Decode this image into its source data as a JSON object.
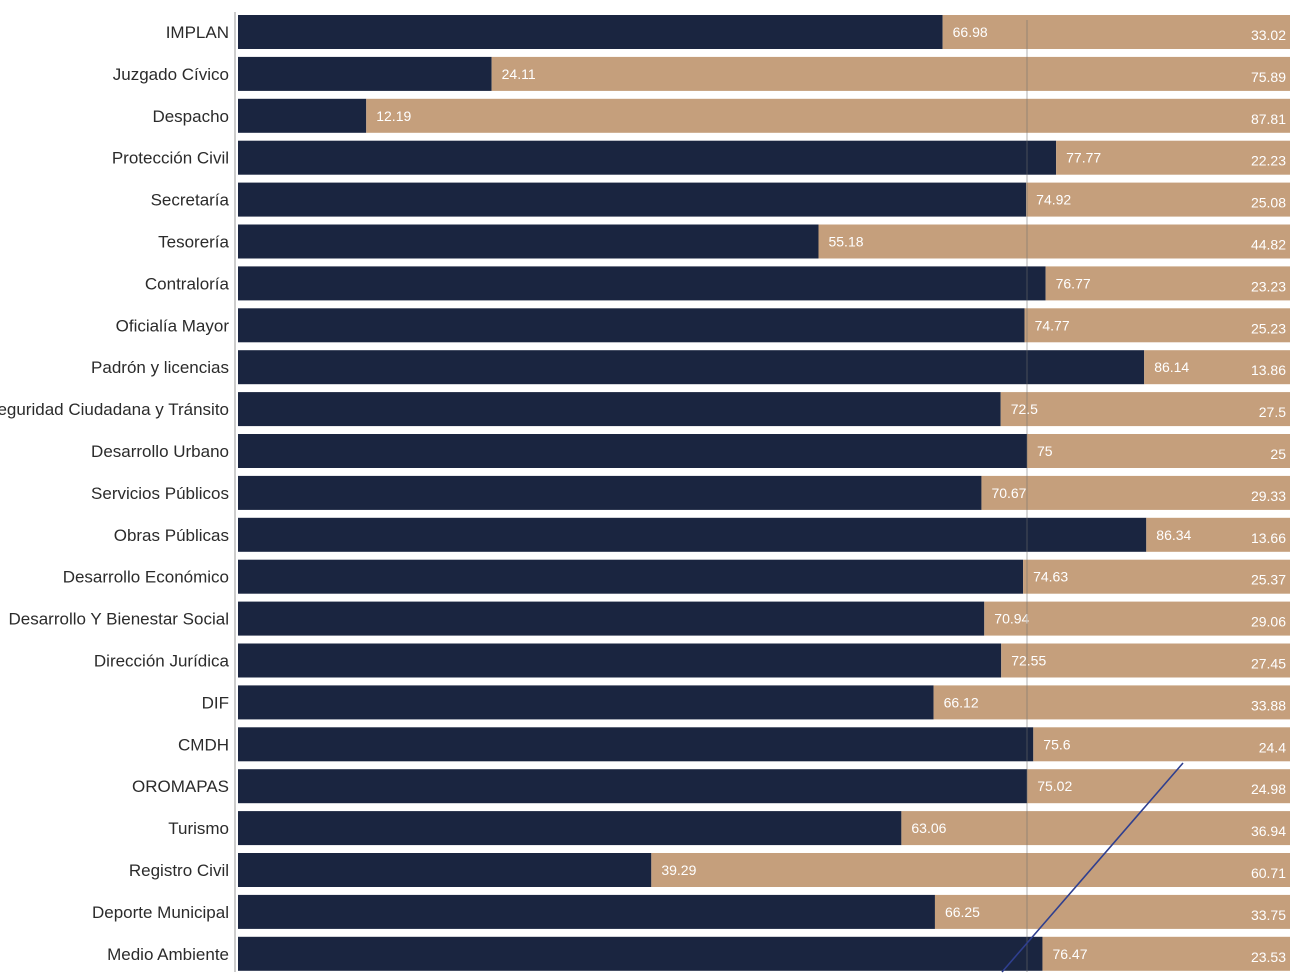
{
  "chart_data": {
    "type": "bar",
    "orientation": "horizontal",
    "stacked": true,
    "percent_stacked": true,
    "xlim": [
      0,
      100
    ],
    "grid": false,
    "legend": "none",
    "title": "",
    "xlabel": "",
    "ylabel": "",
    "categories": [
      "IMPLAN",
      "Juzgado Cívico",
      "Despacho",
      "Protección Civil",
      "Secretaría",
      "Tesorería",
      "Contraloría",
      "Oficialía Mayor",
      "Padrón y licencias",
      "Seguridad Ciudadana y Tránsito",
      "Desarrollo Urbano",
      "Servicios Públicos",
      "Obras Públicas",
      "Desarrollo Económico",
      "Desarrollo Y Bienestar Social",
      "Dirección Jurídica",
      "DIF",
      "CMDH",
      "OROMAPAS",
      "Turismo",
      "Registro Civil",
      "Deporte Municipal",
      "Medio Ambiente"
    ],
    "series": [
      {
        "color": "#1a2540",
        "values": [
          66.98,
          24.11,
          12.19,
          77.77,
          74.92,
          55.18,
          76.77,
          74.77,
          86.14,
          72.5,
          75,
          70.67,
          86.34,
          74.63,
          70.94,
          72.55,
          66.12,
          75.6,
          75.02,
          63.06,
          39.29,
          66.25,
          76.47
        ],
        "labels": [
          "66.98",
          "24.11",
          "12.19",
          "77.77",
          "74.92",
          "55.18",
          "76.77",
          "74.77",
          "86.14",
          "72.5",
          "75",
          "70.67",
          "86.34",
          "74.63",
          "70.94",
          "72.55",
          "66.12",
          "75.6",
          "75.02",
          "63.06",
          "39.29",
          "66.25",
          "76.47"
        ]
      },
      {
        "color": "#c59f7c",
        "values": [
          33.02,
          75.89,
          87.81,
          22.23,
          25.08,
          44.82,
          23.23,
          25.23,
          13.86,
          27.5,
          25,
          29.33,
          13.66,
          25.37,
          29.06,
          27.45,
          33.88,
          24.4,
          24.98,
          36.94,
          60.71,
          33.75,
          23.53
        ],
        "labels": [
          "33.02",
          "75.89",
          "87.81",
          "22.23",
          "25.08",
          "44.82",
          "23.23",
          "25.23",
          "13.86",
          "27.5",
          "25",
          "29.33",
          "13.66",
          "25.37",
          "29.06",
          "27.45",
          "33.88",
          "24.4",
          "24.98",
          "36.94",
          "60.71",
          "33.75",
          "23.53"
        ]
      }
    ]
  }
}
